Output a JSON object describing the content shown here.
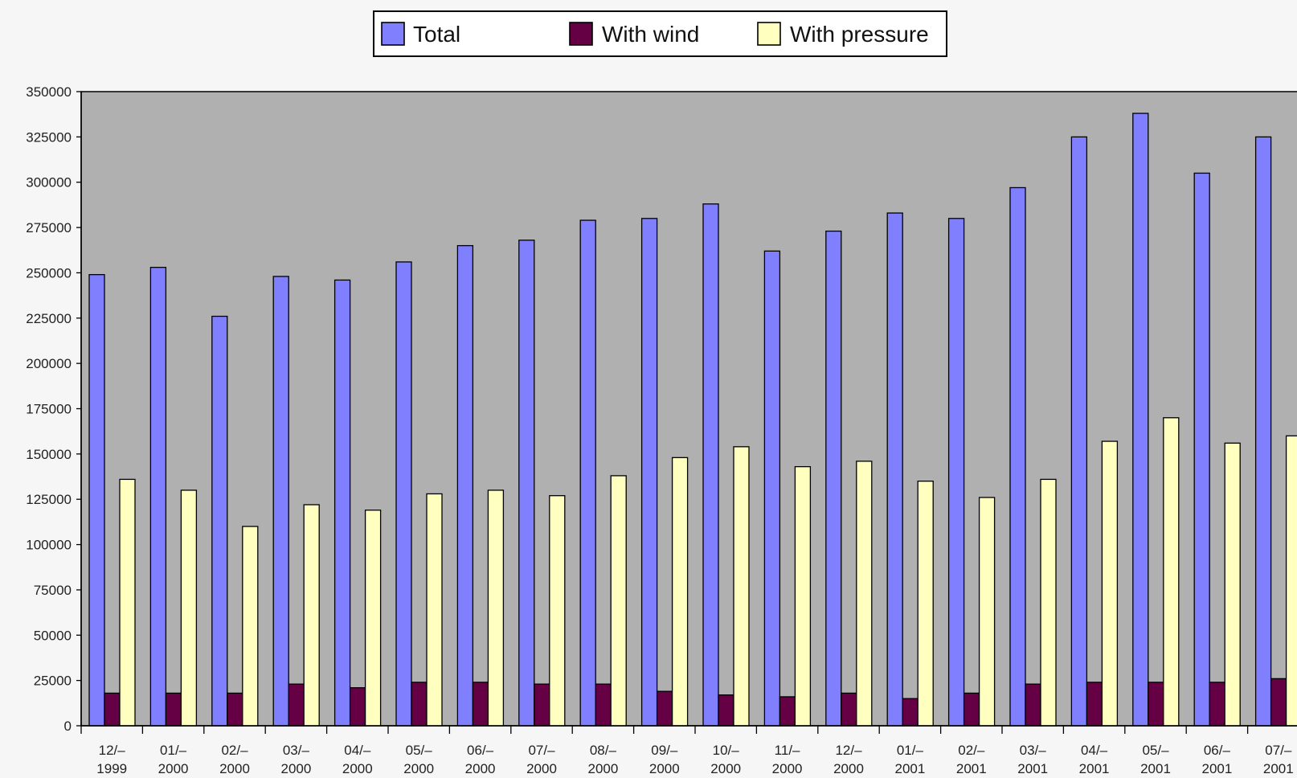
{
  "chart_data": {
    "type": "bar",
    "title": "",
    "xlabel": "",
    "ylabel": "",
    "ylim": [
      0,
      350000
    ],
    "yticks": [
      "350000",
      "325000",
      "300000",
      "275000",
      "250000",
      "225000",
      "200000",
      "175000",
      "150000",
      "125000",
      "100000",
      "75000",
      "50000",
      "25000",
      "0"
    ],
    "categories": [
      [
        "12/–",
        "1999"
      ],
      [
        "01/–",
        "2000"
      ],
      [
        "02/–",
        "2000"
      ],
      [
        "03/–",
        "2000"
      ],
      [
        "04/–",
        "2000"
      ],
      [
        "05/–",
        "2000"
      ],
      [
        "06/–",
        "2000"
      ],
      [
        "07/–",
        "2000"
      ],
      [
        "08/–",
        "2000"
      ],
      [
        "09/–",
        "2000"
      ],
      [
        "10/–",
        "2000"
      ],
      [
        "11/–",
        "2000"
      ],
      [
        "12/–",
        "2000"
      ],
      [
        "01/–",
        "2001"
      ],
      [
        "02/–",
        "2001"
      ],
      [
        "03/–",
        "2001"
      ],
      [
        "04/–",
        "2001"
      ],
      [
        "05/–",
        "2001"
      ],
      [
        "06/–",
        "2001"
      ],
      [
        "07/–",
        "2001"
      ]
    ],
    "series": [
      {
        "name": "Total",
        "color": "#8080ff",
        "values": [
          249000,
          253000,
          226000,
          248000,
          246000,
          256000,
          265000,
          268000,
          279000,
          280000,
          288000,
          262000,
          273000,
          283000,
          280000,
          297000,
          325000,
          338000,
          305000,
          325000
        ]
      },
      {
        "name": "With wind",
        "color": "#660044",
        "values": [
          18000,
          18000,
          18000,
          23000,
          21000,
          24000,
          24000,
          23000,
          23000,
          19000,
          17000,
          16000,
          18000,
          15000,
          18000,
          23000,
          24000,
          24000,
          24000,
          26000
        ]
      },
      {
        "name": "With pressure",
        "color": "#ffffc0",
        "values": [
          136000,
          130000,
          110000,
          122000,
          119000,
          128000,
          130000,
          127000,
          138000,
          148000,
          154000,
          143000,
          146000,
          135000,
          126000,
          136000,
          157000,
          170000,
          156000,
          160000
        ]
      }
    ],
    "grid": false,
    "legend": "top"
  }
}
